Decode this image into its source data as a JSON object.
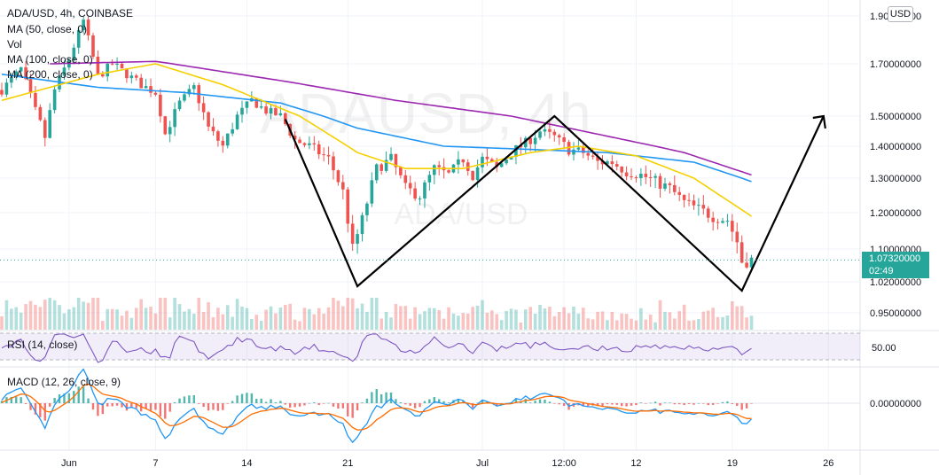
{
  "header": {
    "title": "ADA/USD, 4h, COINBASE",
    "indicators": [
      "MA (50, close, 0)",
      "Vol",
      "MA (100, close, 0)",
      "MA (200, close, 0)"
    ],
    "rsi_label": "RSI (14, close)",
    "macd_label": "MACD (12, 26, close, 9)"
  },
  "currency": "USD",
  "last_price": {
    "value": "1.07320000",
    "countdown": "02:49"
  },
  "watermark": {
    "big": "ADAUSD, 4h",
    "small": "ADA/USD"
  },
  "colors": {
    "up": "#26a69a",
    "down": "#ef5350",
    "ma50": "#f5d000",
    "ma100": "#2196f3",
    "ma200": "#9c27b0",
    "rsi": "#7e57c2",
    "macd": "#2196f3",
    "signal": "#ff6d00",
    "grid": "#f0f3fa",
    "last": "#26a69a"
  },
  "chart_data": {
    "type": "candlestick",
    "title": "ADA/USD, 4h, COINBASE",
    "x_labels": [
      "Jun",
      "7",
      "14",
      "21",
      "Jul",
      "12:00",
      "12",
      "19",
      "26"
    ],
    "y_ticks": [
      "1.90000000",
      "1.70000000",
      "1.50000000",
      "1.40000000",
      "1.30000000",
      "1.20000000",
      "1.10000000",
      "1.02000000",
      "0.95000000"
    ],
    "ylim": [
      0.93,
      1.93
    ],
    "close_path": [
      [
        0,
        1.6
      ],
      [
        4,
        1.68
      ],
      [
        7,
        1.52
      ],
      [
        9,
        1.43
      ],
      [
        11,
        1.6
      ],
      [
        14,
        1.72
      ],
      [
        17,
        1.88
      ],
      [
        20,
        1.65
      ],
      [
        23,
        1.7
      ],
      [
        26,
        1.66
      ],
      [
        29,
        1.62
      ],
      [
        32,
        1.59
      ],
      [
        34,
        1.44
      ],
      [
        37,
        1.55
      ],
      [
        40,
        1.61
      ],
      [
        43,
        1.46
      ],
      [
        46,
        1.4
      ],
      [
        49,
        1.5
      ],
      [
        52,
        1.56
      ],
      [
        55,
        1.52
      ],
      [
        58,
        1.5
      ],
      [
        61,
        1.42
      ],
      [
        64,
        1.4
      ],
      [
        68,
        1.36
      ],
      [
        71,
        1.26
      ],
      [
        73,
        1.1
      ],
      [
        75,
        1.18
      ],
      [
        78,
        1.33
      ],
      [
        81,
        1.36
      ],
      [
        84,
        1.27
      ],
      [
        87,
        1.25
      ],
      [
        90,
        1.33
      ],
      [
        93,
        1.31
      ],
      [
        96,
        1.36
      ],
      [
        98,
        1.31
      ],
      [
        100,
        1.36
      ],
      [
        103,
        1.33
      ],
      [
        106,
        1.38
      ],
      [
        109,
        1.41
      ],
      [
        112,
        1.45
      ],
      [
        115,
        1.43
      ],
      [
        118,
        1.39
      ],
      [
        121,
        1.38
      ],
      [
        124,
        1.35
      ],
      [
        127,
        1.35
      ],
      [
        130,
        1.32
      ],
      [
        133,
        1.31
      ],
      [
        136,
        1.29
      ],
      [
        139,
        1.27
      ],
      [
        142,
        1.23
      ],
      [
        145,
        1.21
      ],
      [
        148,
        1.19
      ],
      [
        151,
        1.18
      ],
      [
        153,
        1.12
      ],
      [
        154,
        1.07
      ],
      [
        156,
        1.0732
      ]
    ],
    "pattern": {
      "name": "hand-drawn W pattern projection",
      "points": [
        [
          59,
          1.49
        ],
        [
          74,
          1.01
        ],
        [
          115,
          1.5
        ],
        [
          154,
          1.0
        ],
        [
          171,
          1.5
        ]
      ]
    },
    "ma50_path": [
      [
        0,
        1.56
      ],
      [
        20,
        1.66
      ],
      [
        32,
        1.7
      ],
      [
        46,
        1.62
      ],
      [
        62,
        1.5
      ],
      [
        74,
        1.38
      ],
      [
        84,
        1.33
      ],
      [
        96,
        1.33
      ],
      [
        110,
        1.38
      ],
      [
        120,
        1.4
      ],
      [
        132,
        1.37
      ],
      [
        144,
        1.3
      ],
      [
        156,
        1.19
      ]
    ],
    "ma100_path": [
      [
        0,
        1.66
      ],
      [
        20,
        1.61
      ],
      [
        38,
        1.59
      ],
      [
        58,
        1.55
      ],
      [
        74,
        1.46
      ],
      [
        92,
        1.4
      ],
      [
        110,
        1.39
      ],
      [
        126,
        1.38
      ],
      [
        144,
        1.35
      ],
      [
        156,
        1.29
      ]
    ],
    "ma200_path": [
      [
        10,
        1.7
      ],
      [
        32,
        1.71
      ],
      [
        60,
        1.63
      ],
      [
        82,
        1.56
      ],
      [
        106,
        1.5
      ],
      [
        124,
        1.44
      ],
      [
        142,
        1.38
      ],
      [
        156,
        1.31
      ]
    ],
    "last_price": 1.0732,
    "panes": {
      "rsi": {
        "label": "RSI (14, close)",
        "level": "50.00",
        "bands": [
          30,
          70
        ]
      },
      "macd": {
        "label": "MACD (12, 26, close, 9)",
        "zero": "0.00000000"
      }
    }
  }
}
